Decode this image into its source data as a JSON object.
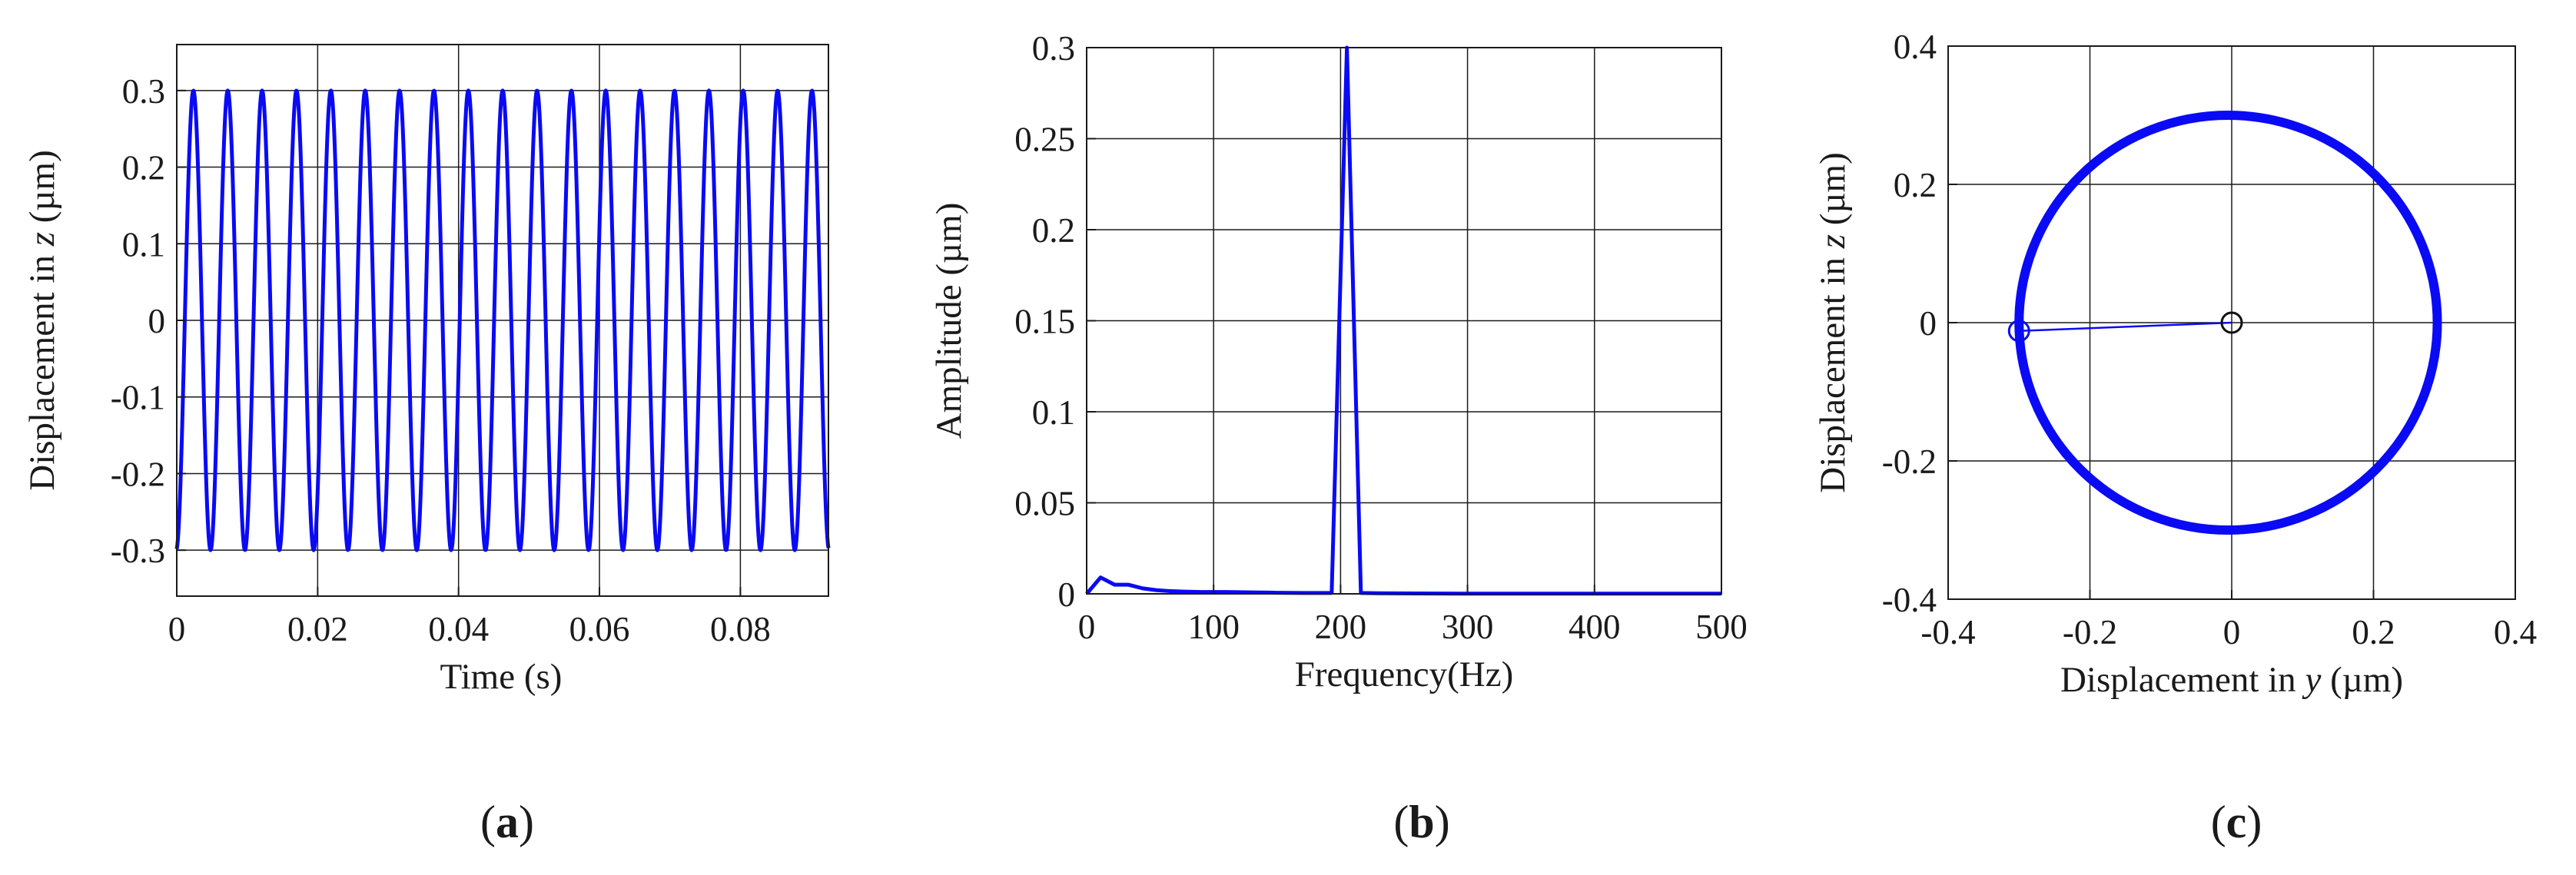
{
  "colors": {
    "series": "#0a0af5",
    "grid": "#1a1a1a",
    "axis": "#1a1a1a",
    "center_marker": "#111111"
  },
  "chart_data": [
    {
      "id": "a",
      "type": "line",
      "panel_label": {
        "open": "(",
        "letter": "a",
        "close": ")"
      },
      "xlabel": "Time (s)",
      "ylabel": {
        "prefix": "Displacement in ",
        "var": "z",
        "suffix": " (µm)"
      },
      "xlim": [
        0,
        0.0925
      ],
      "ylim": [
        -0.36,
        0.36
      ],
      "xticks": [
        0,
        0.02,
        0.04,
        0.06,
        0.08
      ],
      "xtick_labels": [
        "0",
        "0.02",
        "0.04",
        "0.06",
        "0.08"
      ],
      "yticks": [
        -0.3,
        -0.2,
        -0.1,
        0,
        0.1,
        0.2,
        0.3
      ],
      "ytick_labels": [
        "-0.3",
        "-0.2",
        "-0.1",
        "0",
        "0.1",
        "0.2",
        "0.3"
      ],
      "grid": true,
      "series": [
        {
          "name": "displacement z",
          "function": "sine",
          "amplitude_um": 0.3,
          "frequency_hz": 205,
          "phase_rad": -1.47,
          "t_start": 0,
          "t_end": 0.0925,
          "samples": 1200
        }
      ]
    },
    {
      "id": "b",
      "type": "line",
      "panel_label": {
        "open": "(",
        "letter": "b",
        "close": ")"
      },
      "xlabel": "Frequency(Hz)",
      "ylabel": "Amplitude (µm)",
      "xlim": [
        0,
        500
      ],
      "ylim": [
        0,
        0.3
      ],
      "xticks": [
        0,
        100,
        200,
        300,
        400,
        500
      ],
      "xtick_labels": [
        "0",
        "100",
        "200",
        "300",
        "400",
        "500"
      ],
      "yticks": [
        0,
        0.05,
        0.1,
        0.15,
        0.2,
        0.25,
        0.3
      ],
      "ytick_labels": [
        "0",
        "0.05",
        "0.1",
        "0.15",
        "0.2",
        "0.25",
        "0.3"
      ],
      "grid": true,
      "series": [
        {
          "name": "amplitude spectrum",
          "x": [
            0,
            11,
            22,
            33,
            44,
            55,
            66,
            77,
            90,
            110,
            130,
            150,
            170,
            193,
            205,
            216,
            230,
            260,
            300,
            400,
            500
          ],
          "y": [
            0.0,
            0.009,
            0.005,
            0.005,
            0.003,
            0.002,
            0.0015,
            0.0012,
            0.001,
            0.001,
            0.0008,
            0.0006,
            0.0005,
            0.0005,
            0.3,
            0.0005,
            0.0003,
            0.0002,
            0.0001,
            0.0001,
            0.0001
          ]
        }
      ]
    },
    {
      "id": "c",
      "type": "scatter",
      "panel_label": {
        "open": "(",
        "letter": "c",
        "close": ")"
      },
      "xlabel": {
        "prefix": "Displacement in ",
        "var": "y",
        "suffix": " (µm)"
      },
      "ylabel": {
        "prefix": "Displacement in ",
        "var": "z",
        "suffix": " (µm)"
      },
      "xlim": [
        -0.4,
        0.4
      ],
      "ylim": [
        -0.4,
        0.4
      ],
      "xticks": [
        -0.4,
        -0.2,
        0,
        0.2,
        0.4
      ],
      "xtick_labels": [
        "-0.4",
        "-0.2",
        "0",
        "0.2",
        "0.4"
      ],
      "yticks": [
        -0.4,
        -0.2,
        0,
        0.2,
        0.4
      ],
      "ytick_labels": [
        "-0.4",
        "-0.2",
        "0",
        "0.2",
        "0.4"
      ],
      "grid": true,
      "orbit": {
        "center": [
          -0.005,
          0.0
        ],
        "radius_y": 0.295,
        "radius_z": 0.3
      },
      "radius_line": {
        "from": [
          0.0,
          0.0
        ],
        "to": [
          -0.3,
          -0.012
        ]
      },
      "markers": [
        {
          "name": "orbit-start-marker",
          "at": [
            -0.3,
            -0.012
          ]
        },
        {
          "name": "orbit-center-marker",
          "at": [
            0.0,
            0.0
          ]
        }
      ]
    }
  ]
}
